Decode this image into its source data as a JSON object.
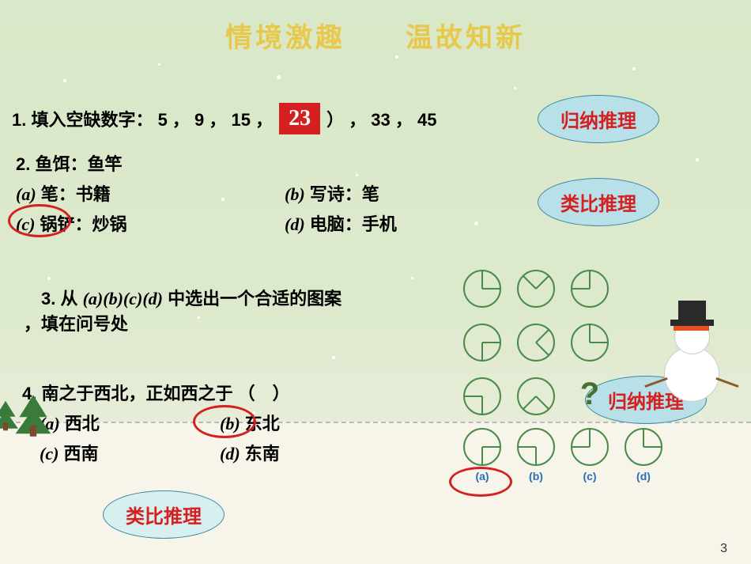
{
  "title": "情境激趣　　温故知新",
  "q1": {
    "prompt": "1. 填入空缺数字： 5 ， 9 ， 15 ，",
    "answer": "23",
    "rest": "） ， 33 ， 45",
    "badge": "归纳推理"
  },
  "q2": {
    "prompt": "2. 鱼饵：鱼竿",
    "opts": {
      "a": "(a) 笔：书籍",
      "b": "(b) 写诗：笔",
      "c": "(c) 锅铲：炒锅",
      "d": "(d) 电脑：手机"
    },
    "badge": "类比推理"
  },
  "q3": {
    "prompt": "3. 从 (a)(b)(c)(d) 中选出一个合适的图案 ，填在问号处",
    "badge": "归纳推理"
  },
  "q4": {
    "prompt": "4. 南之于西北，正如西之于 （　）",
    "opts": {
      "a": "(a) 西北",
      "b": "(b) 东北",
      "c": "(c) 西南",
      "d": "(d) 东南"
    },
    "badge": "类比推理"
  },
  "pie_grid": [
    {
      "start": 0,
      "span": 90
    },
    {
      "start": 315,
      "span": 90
    },
    {
      "start": 270,
      "span": 90
    },
    {
      "start": 90,
      "span": 90
    },
    {
      "start": 45,
      "span": 90
    },
    {
      "start": 0,
      "span": 90
    },
    {
      "start": 180,
      "span": 90
    },
    {
      "start": 135,
      "span": 90
    },
    null
  ],
  "pie_options": [
    {
      "label": "(a)",
      "start": 90,
      "span": 90
    },
    {
      "label": "(b)",
      "start": 180,
      "span": 90
    },
    {
      "label": "(c)",
      "start": 270,
      "span": 90
    },
    {
      "label": "(d)",
      "start": 0,
      "span": 90
    }
  ],
  "colors": {
    "pie_stroke": "#4a8a4a",
    "pie_fill": "#4a8a4a",
    "bg_top": "#d9e8c8",
    "bg_bot": "#f4f2e6",
    "title_color": "#e8c84a",
    "red": "#d42020",
    "badge_bg": "#b8e0e8"
  },
  "page_num": "3"
}
